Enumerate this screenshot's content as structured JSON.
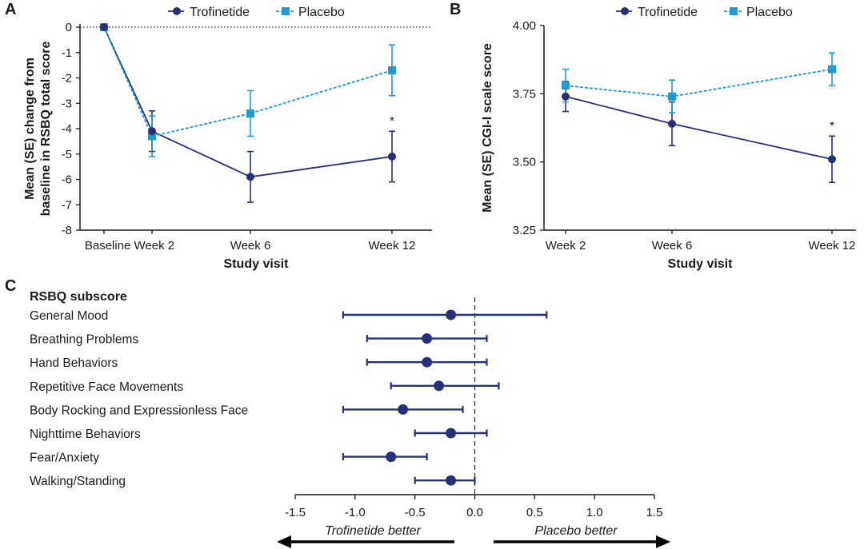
{
  "colors": {
    "trofinetide": "#27307a",
    "placebo": "#1e9dd0",
    "axis": "#1a1a1a"
  },
  "chart_data": [
    {
      "panel": "A",
      "type": "line",
      "legend": [
        "Trofinetide",
        "Placebo"
      ],
      "categories": [
        "Baseline",
        "Week 2",
        "Week 6",
        "Week 12"
      ],
      "x_tick_labels": [
        "Baseline Week 2",
        "Week 6",
        "Week 12"
      ],
      "xlabel": "Study visit",
      "ylabel_line1": "Mean (SE) change from",
      "ylabel_line2": "baseline in RSBQ total score",
      "ylim": [
        -8,
        0
      ],
      "y_ticks": [
        "0",
        "-1",
        "-2",
        "-3",
        "-4",
        "-5",
        "-6",
        "-7",
        "-8"
      ],
      "reference_line_y": 0,
      "series": [
        {
          "name": "Trofinetide",
          "values": [
            0,
            -4.1,
            -5.9,
            -5.1
          ],
          "se": [
            0,
            0.8,
            1.0,
            1.0
          ]
        },
        {
          "name": "Placebo",
          "values": [
            0,
            -4.3,
            -3.4,
            -1.7
          ],
          "se": [
            0,
            0.8,
            0.9,
            1.0
          ]
        }
      ],
      "annotations": [
        {
          "text": "*",
          "category": "Week 12"
        }
      ]
    },
    {
      "panel": "B",
      "type": "line",
      "legend": [
        "Trofinetide",
        "Placebo"
      ],
      "categories": [
        "Week 2",
        "Week 6",
        "Week 12"
      ],
      "xlabel": "Study visit",
      "ylabel": "Mean (SE) CGI-I scale score",
      "ylim": [
        3.25,
        4.0
      ],
      "y_ticks": [
        "4.00",
        "3.75",
        "3.50",
        "3.25"
      ],
      "series": [
        {
          "name": "Trofinetide",
          "values": [
            3.74,
            3.64,
            3.51
          ],
          "se": [
            0.055,
            0.08,
            0.085
          ]
        },
        {
          "name": "Placebo",
          "values": [
            3.78,
            3.74,
            3.84
          ],
          "se": [
            0.06,
            0.06,
            0.06
          ]
        }
      ],
      "annotations": [
        {
          "text": "*",
          "category": "Week 12"
        }
      ]
    },
    {
      "panel": "C",
      "type": "scatter",
      "title": "RSBQ subscore",
      "categories": [
        "General Mood",
        "Breathing Problems",
        "Hand Behaviors",
        "Repetitive Face Movements",
        "Body Rocking and Expressionless Face",
        "Nighttime Behaviors",
        "Fear/Anxiety",
        "Walking/Standing"
      ],
      "estimates": [
        -0.2,
        -0.4,
        -0.4,
        -0.3,
        -0.6,
        -0.2,
        -0.7,
        -0.2
      ],
      "ci_low": [
        -1.1,
        -0.9,
        -0.9,
        -0.7,
        -1.1,
        -0.5,
        -1.1,
        -0.5
      ],
      "ci_high": [
        0.6,
        0.1,
        0.1,
        0.2,
        -0.1,
        0.1,
        -0.4,
        0.0
      ],
      "xlim": [
        -1.5,
        1.5
      ],
      "x_ticks": [
        "-1.5",
        "-1.0",
        "-0.5",
        "0.0",
        "0.5",
        "1.0",
        "1.5"
      ],
      "reference_line_x": 0,
      "left_arrow_label": "Trofinetide better",
      "right_arrow_label": "Placebo better"
    }
  ]
}
